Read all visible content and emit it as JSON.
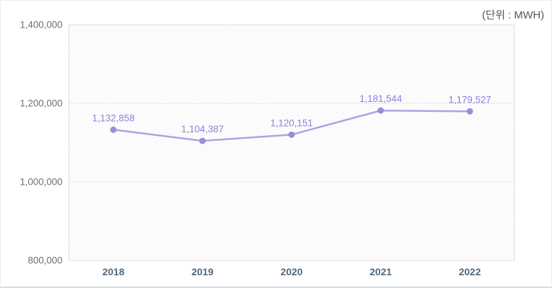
{
  "chart_data": {
    "type": "line",
    "title": "",
    "unit_label": "(단위 : MWH)",
    "categories": [
      "2018",
      "2019",
      "2020",
      "2021",
      "2022"
    ],
    "series": [
      {
        "name": "MWH",
        "values": [
          1132858,
          1104387,
          1120151,
          1181544,
          1179527
        ],
        "value_labels": [
          "1,132,858",
          "1,104,387",
          "1,120,151",
          "1,181,544",
          "1,179,527"
        ]
      }
    ],
    "ylim": [
      800000,
      1400000
    ],
    "ytick_step": 200000,
    "ytick_labels": [
      "800,000",
      "1,000,000",
      "1,200,000",
      "1,400,000"
    ],
    "grid": "horizontal",
    "legend": "none",
    "colors": {
      "line": "#aba2e3",
      "marker": "#978ddc",
      "value_label": "#8b82dc",
      "ytick_label": "#6e6e6e",
      "year_label": "#4e6780",
      "gridline": "#e7e7e7",
      "plot_border": "#dcdcdc",
      "hatch": "#f2f2f2",
      "unit_label": "#555555",
      "background": "#ffffff"
    }
  }
}
